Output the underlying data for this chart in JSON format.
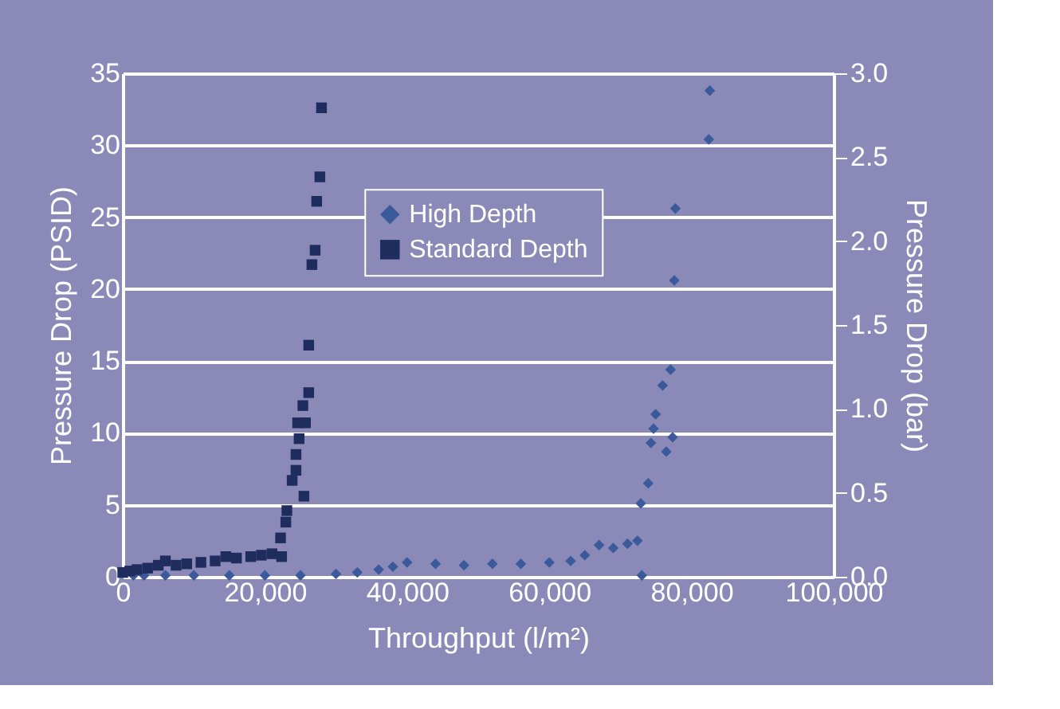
{
  "chart_data": {
    "type": "scatter",
    "xlabel": "Throughput (l/m²)",
    "ylabel": "Pressure Drop (PSID)",
    "y2label": "Pressure Drop (bar)",
    "xlim": [
      0,
      100000
    ],
    "xticks": [
      {
        "value": 0,
        "label": "0"
      },
      {
        "value": 20000,
        "label": "20,000"
      },
      {
        "value": 40000,
        "label": "40,000"
      },
      {
        "value": 60000,
        "label": "60,000"
      },
      {
        "value": 80000,
        "label": "80,000"
      },
      {
        "value": 100000,
        "label": "100,000"
      }
    ],
    "ylim": [
      0,
      35
    ],
    "yticks": [
      0,
      5,
      10,
      15,
      20,
      25,
      30,
      35
    ],
    "y2lim": [
      0,
      3
    ],
    "y2ticks": [
      {
        "value": 0,
        "label": "0.0"
      },
      {
        "value": 0.5,
        "label": "0.5"
      },
      {
        "value": 1,
        "label": "1.0"
      },
      {
        "value": 1.5,
        "label": "1.5"
      },
      {
        "value": 2,
        "label": "2.0"
      },
      {
        "value": 2.5,
        "label": "2.5"
      },
      {
        "value": 3,
        "label": "3.0"
      }
    ],
    "grid": "y",
    "legend": "top",
    "series": [
      {
        "name": "High Depth",
        "color": "#3a5a9b",
        "marker": "diamond",
        "x": [
          1500,
          3000,
          6000,
          10000,
          15000,
          20000,
          25000,
          30000,
          33000,
          36000,
          38000,
          40000,
          44000,
          48000,
          52000,
          56000,
          60000,
          63000,
          65000,
          67000,
          69000,
          71000,
          72400,
          73020,
          72870,
          73920,
          74290,
          74660,
          74960,
          75940,
          76460,
          77060,
          77350,
          77580,
          77740,
          82440,
          82580
        ],
        "values": [
          0.1,
          0.1,
          0.1,
          0.1,
          0.1,
          0.1,
          0.1,
          0.2,
          0.3,
          0.5,
          0.7,
          1.0,
          0.9,
          0.8,
          0.9,
          0.9,
          1.0,
          1.1,
          1.5,
          2.2,
          2.0,
          2.3,
          2.5,
          0.1,
          5.1,
          6.5,
          9.3,
          10.3,
          11.3,
          13.3,
          8.7,
          14.4,
          9.7,
          20.6,
          25.6,
          30.4,
          33.8
        ]
      },
      {
        "name": "Standard Depth",
        "color": "#1f2d5e",
        "marker": "square",
        "x": [
          0,
          1000,
          2000,
          3500,
          5000,
          6000,
          7500,
          9000,
          11000,
          13000,
          14500,
          16000,
          18000,
          19500,
          21000,
          22350,
          22200,
          22940,
          23090,
          25490,
          23830,
          24370,
          24370,
          24810,
          24600,
          25700,
          25340,
          26160,
          26160,
          26610,
          27060,
          27280,
          27730,
          27960
        ],
        "values": [
          0.3,
          0.4,
          0.5,
          0.6,
          0.8,
          1.1,
          0.8,
          0.9,
          1.0,
          1.1,
          1.4,
          1.3,
          1.4,
          1.5,
          1.6,
          1.4,
          2.7,
          3.8,
          4.6,
          5.6,
          6.7,
          7.4,
          8.5,
          9.6,
          10.7,
          10.7,
          11.9,
          12.8,
          16.1,
          21.7,
          22.7,
          26.1,
          27.8,
          32.6
        ]
      }
    ]
  }
}
